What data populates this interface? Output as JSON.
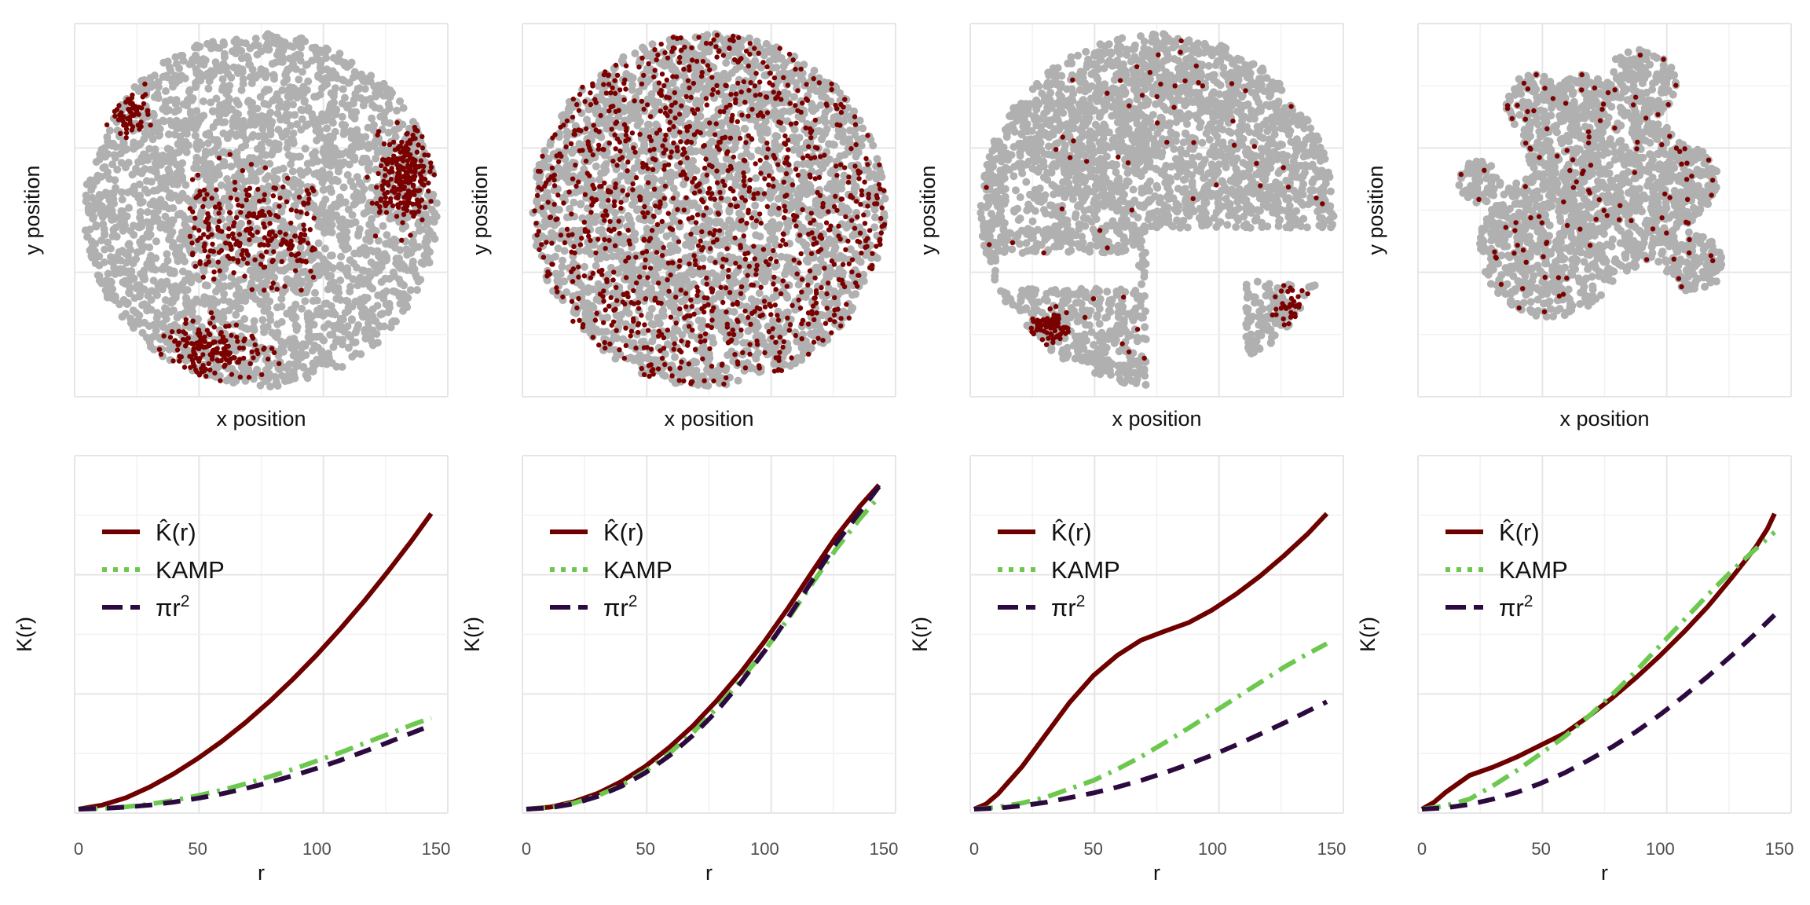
{
  "colors": {
    "khat": "#6e0000",
    "kamp": "#6cc84e",
    "pi_r2": "#2c0a3f",
    "point_bg": "#b0b0b0",
    "point_fg": "#7b0000",
    "grid_major": "#e6e6e6",
    "grid_minor": "#f1f1f1"
  },
  "legend": {
    "khat_label": "K̂(r)",
    "kamp_label": "KAMP",
    "pi_r2_base": "πr",
    "pi_r2_sup": "2"
  },
  "chart_data": [
    {
      "type": "scatter",
      "panel": 1,
      "xlabel": "x position",
      "ylabel": "y position",
      "grid": true,
      "pattern": "clustered circular tissue sample with dense dark-red cluster at right edge",
      "series": [
        {
          "name": "background cells",
          "color": "#b0b0b0"
        },
        {
          "name": "marked cells",
          "color": "#7b0000"
        }
      ]
    },
    {
      "type": "scatter",
      "panel": 2,
      "xlabel": "x position",
      "ylabel": "y position",
      "grid": true,
      "pattern": "circular sample with marked cells spread uniformly",
      "series": [
        {
          "name": "background cells",
          "color": "#b0b0b0"
        },
        {
          "name": "marked cells",
          "color": "#7b0000"
        }
      ]
    },
    {
      "type": "scatter",
      "panel": 3,
      "xlabel": "x position",
      "ylabel": "y position",
      "grid": true,
      "pattern": "inhomogeneous tissue with empty regions and sparse marked cells",
      "series": [
        {
          "name": "background cells",
          "color": "#b0b0b0"
        },
        {
          "name": "marked cells",
          "color": "#7b0000"
        }
      ]
    },
    {
      "type": "scatter",
      "panel": 4,
      "xlabel": "x position",
      "ylabel": "y position",
      "grid": true,
      "pattern": "irregular tissue fragments with sparse marked cells",
      "series": [
        {
          "name": "background cells",
          "color": "#b0b0b0"
        },
        {
          "name": "marked cells",
          "color": "#7b0000"
        }
      ]
    },
    {
      "type": "line",
      "panel": 1,
      "xlabel": "r",
      "ylabel": "K(r)",
      "xlim": [
        0,
        150
      ],
      "ylim": [
        0,
        1
      ],
      "x_ticks": [
        "0",
        "50",
        "100",
        "150"
      ],
      "grid": true,
      "legend_position": "top-left",
      "series": [
        {
          "name": "K̂(r)",
          "x": [
            0,
            10,
            20,
            30,
            40,
            50,
            60,
            70,
            80,
            90,
            100,
            110,
            120,
            130,
            140,
            148
          ],
          "y": [
            0,
            0.012,
            0.034,
            0.066,
            0.105,
            0.15,
            0.2,
            0.256,
            0.318,
            0.385,
            0.457,
            0.535,
            0.617,
            0.705,
            0.797,
            0.875
          ]
        },
        {
          "name": "KAMP",
          "x": [
            0,
            10,
            20,
            30,
            40,
            50,
            60,
            70,
            80,
            90,
            100,
            110,
            120,
            130,
            140,
            148
          ],
          "y": [
            0,
            0.002,
            0.007,
            0.015,
            0.026,
            0.04,
            0.056,
            0.075,
            0.096,
            0.118,
            0.143,
            0.168,
            0.195,
            0.222,
            0.25,
            0.27
          ]
        },
        {
          "name": "πr²",
          "x": [
            0,
            10,
            20,
            30,
            40,
            50,
            60,
            70,
            80,
            90,
            100,
            110,
            120,
            130,
            140,
            148
          ],
          "y": [
            0,
            0.002,
            0.006,
            0.012,
            0.021,
            0.032,
            0.045,
            0.061,
            0.079,
            0.099,
            0.121,
            0.145,
            0.171,
            0.198,
            0.226,
            0.248
          ]
        }
      ]
    },
    {
      "type": "line",
      "panel": 2,
      "xlabel": "r",
      "ylabel": "K(r)",
      "xlim": [
        0,
        150
      ],
      "ylim": [
        0,
        1
      ],
      "x_ticks": [
        "0",
        "50",
        "100",
        "150"
      ],
      "grid": true,
      "legend_position": "top-left",
      "series": [
        {
          "name": "K̂(r)",
          "x": [
            0,
            10,
            20,
            30,
            40,
            50,
            60,
            70,
            80,
            90,
            100,
            110,
            120,
            130,
            140,
            148
          ],
          "y": [
            0,
            0.006,
            0.022,
            0.047,
            0.082,
            0.127,
            0.183,
            0.247,
            0.322,
            0.405,
            0.497,
            0.597,
            0.703,
            0.807,
            0.897,
            0.96
          ]
        },
        {
          "name": "KAMP",
          "x": [
            0,
            10,
            20,
            30,
            40,
            50,
            60,
            70,
            80,
            90,
            100,
            110,
            120,
            130,
            140,
            148
          ],
          "y": [
            0,
            0.005,
            0.018,
            0.04,
            0.071,
            0.113,
            0.165,
            0.227,
            0.3,
            0.382,
            0.47,
            0.565,
            0.668,
            0.77,
            0.86,
            0.925
          ]
        },
        {
          "name": "πr²",
          "x": [
            0,
            10,
            20,
            30,
            40,
            50,
            60,
            70,
            80,
            90,
            100,
            110,
            120,
            130,
            140,
            148
          ],
          "y": [
            0,
            0.004,
            0.016,
            0.038,
            0.068,
            0.108,
            0.158,
            0.219,
            0.291,
            0.375,
            0.468,
            0.569,
            0.677,
            0.787,
            0.88,
            0.955
          ]
        }
      ]
    },
    {
      "type": "line",
      "panel": 3,
      "xlabel": "r",
      "ylabel": "K(r)",
      "xlim": [
        0,
        150
      ],
      "ylim": [
        0,
        1
      ],
      "x_ticks": [
        "0",
        "50",
        "100",
        "150"
      ],
      "grid": true,
      "legend_position": "top-left",
      "series": [
        {
          "name": "K̂(r)",
          "x": [
            0,
            5,
            10,
            20,
            30,
            40,
            50,
            60,
            70,
            80,
            90,
            100,
            110,
            120,
            130,
            140,
            148
          ],
          "y": [
            0,
            0.015,
            0.045,
            0.125,
            0.22,
            0.315,
            0.395,
            0.455,
            0.5,
            0.527,
            0.552,
            0.59,
            0.637,
            0.69,
            0.75,
            0.815,
            0.875
          ]
        },
        {
          "name": "KAMP",
          "x": [
            0,
            10,
            20,
            30,
            40,
            50,
            60,
            70,
            80,
            90,
            100,
            110,
            120,
            130,
            140,
            148
          ],
          "y": [
            0,
            0.006,
            0.018,
            0.035,
            0.06,
            0.085,
            0.118,
            0.155,
            0.197,
            0.24,
            0.285,
            0.33,
            0.375,
            0.42,
            0.46,
            0.49
          ]
        },
        {
          "name": "πr²",
          "x": [
            0,
            10,
            20,
            30,
            40,
            50,
            60,
            70,
            80,
            90,
            100,
            110,
            120,
            130,
            140,
            148
          ],
          "y": [
            0,
            0.003,
            0.01,
            0.02,
            0.034,
            0.048,
            0.065,
            0.085,
            0.108,
            0.133,
            0.16,
            0.19,
            0.222,
            0.255,
            0.29,
            0.318
          ]
        }
      ]
    },
    {
      "type": "line",
      "panel": 4,
      "xlabel": "r",
      "ylabel": "K(r)",
      "xlim": [
        0,
        150
      ],
      "ylim": [
        0,
        1
      ],
      "x_ticks": [
        "0",
        "50",
        "100",
        "150"
      ],
      "grid": true,
      "legend_position": "top-left",
      "series": [
        {
          "name": "K̂(r)",
          "x": [
            0,
            5,
            10,
            20,
            30,
            40,
            50,
            60,
            70,
            80,
            90,
            100,
            110,
            120,
            130,
            140,
            145,
            148
          ],
          "y": [
            0,
            0.02,
            0.05,
            0.1,
            0.125,
            0.155,
            0.19,
            0.225,
            0.275,
            0.33,
            0.39,
            0.455,
            0.525,
            0.6,
            0.685,
            0.775,
            0.83,
            0.875
          ]
        },
        {
          "name": "KAMP",
          "x": [
            0,
            10,
            20,
            30,
            40,
            50,
            60,
            70,
            80,
            90,
            100,
            110,
            120,
            130,
            140,
            148
          ],
          "y": [
            0,
            0.01,
            0.03,
            0.07,
            0.115,
            0.165,
            0.215,
            0.275,
            0.34,
            0.41,
            0.485,
            0.56,
            0.635,
            0.705,
            0.77,
            0.82
          ]
        },
        {
          "name": "πr²",
          "x": [
            0,
            10,
            20,
            30,
            40,
            50,
            60,
            70,
            80,
            90,
            100,
            110,
            120,
            130,
            140,
            148
          ],
          "y": [
            0,
            0.004,
            0.014,
            0.03,
            0.05,
            0.077,
            0.108,
            0.145,
            0.185,
            0.23,
            0.28,
            0.335,
            0.393,
            0.455,
            0.52,
            0.575
          ]
        }
      ]
    }
  ]
}
